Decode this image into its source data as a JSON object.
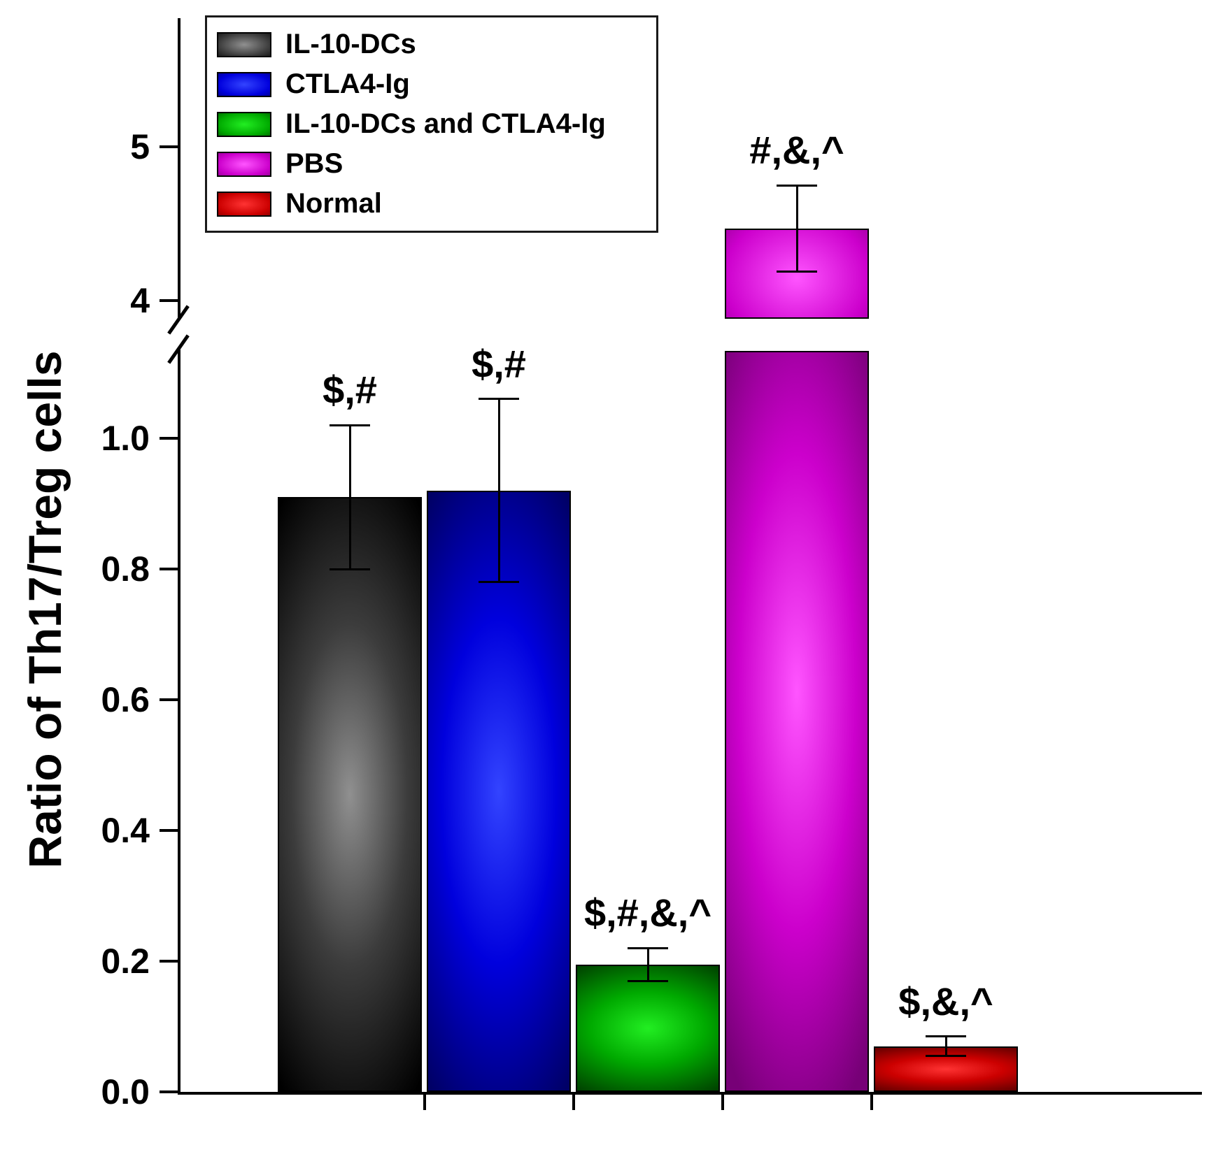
{
  "figure": {
    "ylabel": "Ratio of Th17/Treg cells"
  },
  "chart_data": {
    "type": "bar",
    "title": "",
    "xlabel": "",
    "ylabel": "Ratio of Th17/Treg cells",
    "categories": [
      "IL-10-DCs",
      "CTLA4-Ig",
      "IL-10-DCs and CTLA4-Ig",
      "PBS",
      "Normal"
    ],
    "values": [
      0.91,
      0.92,
      0.195,
      4.47,
      0.07
    ],
    "errors": [
      0.11,
      0.14,
      0.025,
      0.28,
      0.015
    ],
    "annotations": [
      "$,#",
      "$,#",
      "$,#,&,^",
      "#,&,^",
      "$,&,^"
    ],
    "bar_colors": [
      {
        "name": "black",
        "bright": "#909090",
        "mid": "#3c3c3c",
        "edge": "#000000"
      },
      {
        "name": "blue",
        "bright": "#3344ff",
        "mid": "#0000dd",
        "edge": "#000066"
      },
      {
        "name": "green",
        "bright": "#22ee22",
        "mid": "#00aa00",
        "edge": "#004400"
      },
      {
        "name": "magenta",
        "bright": "#ff55ff",
        "mid": "#cc00cc",
        "edge": "#770077"
      },
      {
        "name": "red",
        "bright": "#ff3333",
        "mid": "#cc0000",
        "edge": "#660000"
      }
    ],
    "axis": {
      "lower_ticks": [
        {
          "label": "0.0",
          "value": 0.0
        },
        {
          "label": "0.2",
          "value": 0.2
        },
        {
          "label": "0.4",
          "value": 0.4
        },
        {
          "label": "0.6",
          "value": 0.6
        },
        {
          "label": "0.8",
          "value": 0.8
        },
        {
          "label": "1.0",
          "value": 1.0
        }
      ],
      "upper_ticks": [
        {
          "label": "4",
          "value": 4
        },
        {
          "label": "5",
          "value": 5
        }
      ],
      "break_from": 1.13,
      "break_to": 3.87,
      "grid": false
    },
    "legend_position": "top-left"
  }
}
